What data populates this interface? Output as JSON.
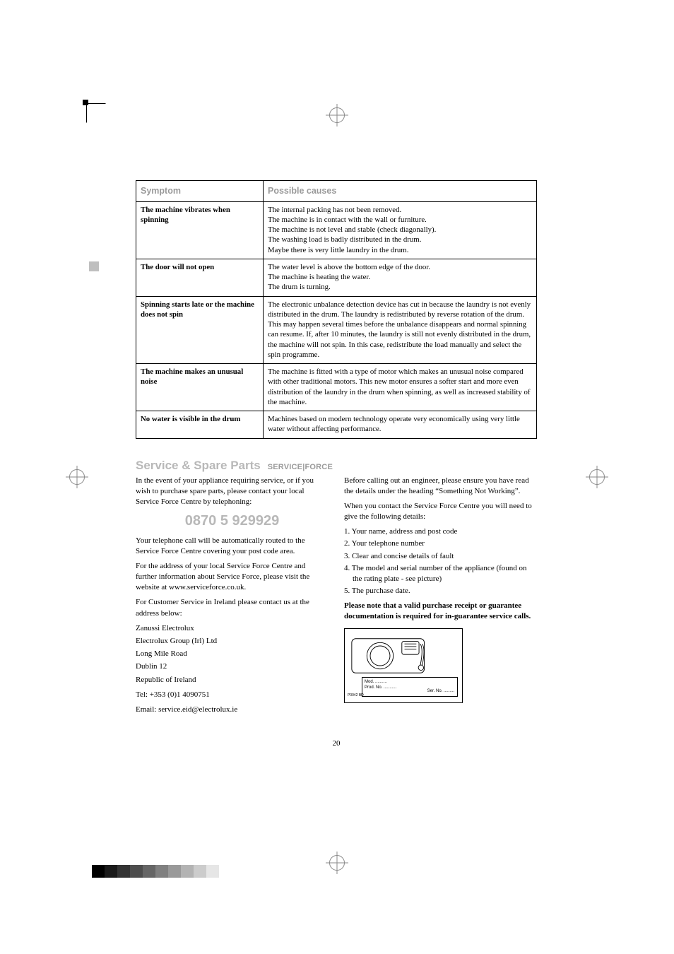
{
  "table": {
    "header_symptom": "Symptom",
    "header_cause": "Possible causes",
    "rows": [
      {
        "symptom": "The machine vibrates when spinning",
        "cause": "The internal packing has not been removed.\nThe machine is in contact with the wall or furniture.\nThe machine is not level and stable (check diagonally).\nThe washing load is badly distributed in the drum.\nMaybe there is very little laundry in the drum."
      },
      {
        "symptom": "The door will not open",
        "cause": "The water level is above the bottom edge of the door.\nThe machine is heating the water.\nThe drum is turning."
      },
      {
        "symptom": "Spinning starts late or the machine does not spin",
        "cause": "The electronic unbalance detection device has cut in because the laundry is not evenly distributed in the drum. The laundry is redistributed by reverse rotation of the drum. This may happen several times before the unbalance disappears and normal spinning can resume. If, after 10 minutes, the laundry is still not evenly distributed in the drum, the machine will not spin. In this case, redistribute the load manually and select the spin programme."
      },
      {
        "symptom": "The machine makes an unusual noise",
        "cause": "The machine is fitted with a type of motor which makes an unusual noise compared with other traditional motors. This new motor ensures a softer start and more even distribution of the laundry in the drum when spinning, as well as increased stability of the machine."
      },
      {
        "symptom": "No water is visible in the drum",
        "cause": "Machines based on modern technology operate very economically using very little water without affecting performance."
      }
    ]
  },
  "section": {
    "title": "Service & Spare Parts",
    "logo": "SERVICE|FORCE"
  },
  "left_col": {
    "intro": "In the event of your appliance requiring service, or if you wish to purchase spare parts, please contact your local Service Force Centre by telephoning:",
    "phone": "0870 5 929929",
    "routed": "Your telephone call will be automatically routed to the Service Force Centre covering your post code area.",
    "website": "For the address of your local Service Force Centre and further information about Service Force, please visit the website at www.serviceforce.co.uk.",
    "ireland_intro": "For Customer Service in Ireland please contact us at the address below:",
    "addr1": "Zanussi Electrolux",
    "addr2": "Electrolux Group (Irl) Ltd",
    "addr3": "Long Mile Road",
    "addr4": "Dublin 12",
    "addr5": "Republic of Ireland",
    "tel": "Tel: +353 (0)1 4090751",
    "email": "Email: service.eid@electrolux.ie"
  },
  "right_col": {
    "before": "Before calling out an engineer, please ensure you have read the details under the heading “Something Not Working”.",
    "when": "When you contact the Service Force Centre you will need to give the following details:",
    "d1": "1. Your name, address and post code",
    "d2": "2. Your telephone number",
    "d3": "3. Clear and concise details of fault",
    "d4": "4. The model and serial number of the appliance (found on the rating plate - see picture)",
    "d5": "5. The purchase date.",
    "note": "Please note that a valid purchase receipt or guarantee documentation is required for in-guarantee service calls."
  },
  "plate": {
    "mod": "Mod. ..........",
    "prod": "Prod. No. ...........",
    "ser": "Ser. No. .........",
    "corner": "P0042 BD"
  },
  "page_number": "20",
  "greybar_colors": [
    "#000000",
    "#1a1a1a",
    "#333333",
    "#4d4d4d",
    "#666666",
    "#808080",
    "#999999",
    "#b3b3b3",
    "#cccccc",
    "#e6e6e6"
  ]
}
